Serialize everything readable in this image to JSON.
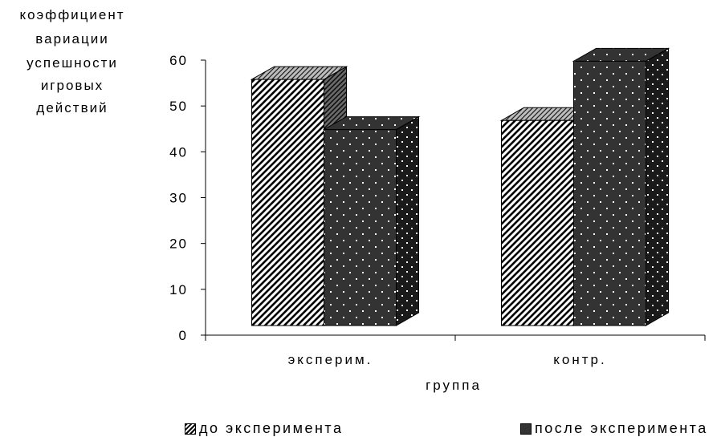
{
  "chart_data": {
    "type": "bar",
    "ylabel_lines": [
      "коэффициент",
      "вариации",
      "успешности",
      "игровых",
      "действий"
    ],
    "xlabel": "группа",
    "categories": [
      "эксперим.",
      "контр."
    ],
    "series": [
      {
        "name": "до эксперимента",
        "values": [
          54,
          45
        ],
        "pattern": "diagonal-hatch"
      },
      {
        "name": "после эксперимента",
        "values": [
          43,
          58
        ],
        "pattern": "dots-dark"
      }
    ],
    "ylim": [
      0,
      60
    ],
    "yticks": [
      0,
      10,
      20,
      30,
      40,
      50,
      60
    ],
    "grid": false,
    "legend_position": "bottom",
    "colors": {
      "series1_fill": "#ffffff",
      "series2_fill": "#333333",
      "axis": "#000000"
    }
  }
}
